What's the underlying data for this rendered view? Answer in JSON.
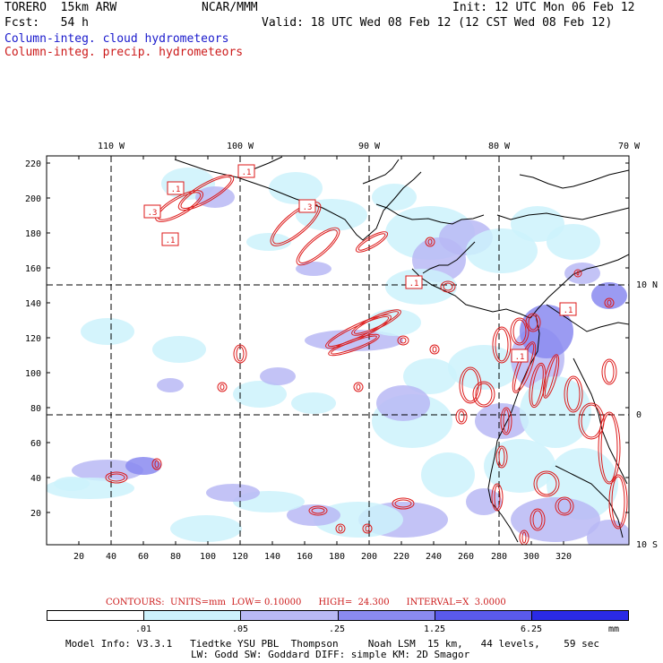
{
  "header": {
    "model": "TORERO  15km ARW",
    "org": "NCAR/MMM",
    "init": "Init: 12 UTC Mon 06 Feb 12",
    "fcst": "Fcst:   54 h",
    "valid": "Valid: 18 UTC Wed 08 Feb 12 (12 CST Wed 08 Feb 12)",
    "field1": "Column-integ. cloud hydrometeors",
    "field2": "Column-integ. precip. hydrometeors"
  },
  "colors": {
    "field1": "#1a1acc",
    "field2": "#cc1a1a",
    "contour": "#dd1a1a",
    "coast": "#000000",
    "shade": [
      "#ffffff",
      "#ccf2fc",
      "#b9b9f5",
      "#8a8af0",
      "#5a5aeb",
      "#2a2ae6"
    ]
  },
  "map": {
    "lon_labels_top": [
      "110 W",
      "100 W",
      "90 W",
      "80 W",
      "70 W"
    ],
    "lat_labels_right": [
      "10 N",
      "0",
      "10 S"
    ],
    "x_ticks": [
      "20",
      "40",
      "60",
      "80",
      "100",
      "120",
      "140",
      "160",
      "180",
      "200",
      "220",
      "240",
      "260",
      "280",
      "300",
      "320"
    ],
    "y_ticks": [
      "220",
      "200",
      "180",
      "160",
      "140",
      "120",
      "100",
      "80",
      "60",
      "40",
      "20"
    ],
    "contour_labels": [
      ".1",
      ".1",
      ".3",
      ".1",
      ".3",
      ".1",
      ".1",
      ".1"
    ]
  },
  "contours_line": "CONTOURS:  UNITS=mm  LOW= 0.10000      HIGH=  24.300      INTERVAL=X  3.0000",
  "colorbar": {
    "labels": [
      ".01",
      ".05",
      ".25",
      "1.25",
      "6.25"
    ],
    "units": "mm"
  },
  "footer": {
    "line1": "Model Info: V3.3.1   Tiedtke YSU PBL  Thompson     Noah LSM  15 km,   44 levels,    59 sec",
    "line2": "LW: Godd SW: Goddard DIFF: simple KM: 2D Smagor"
  }
}
